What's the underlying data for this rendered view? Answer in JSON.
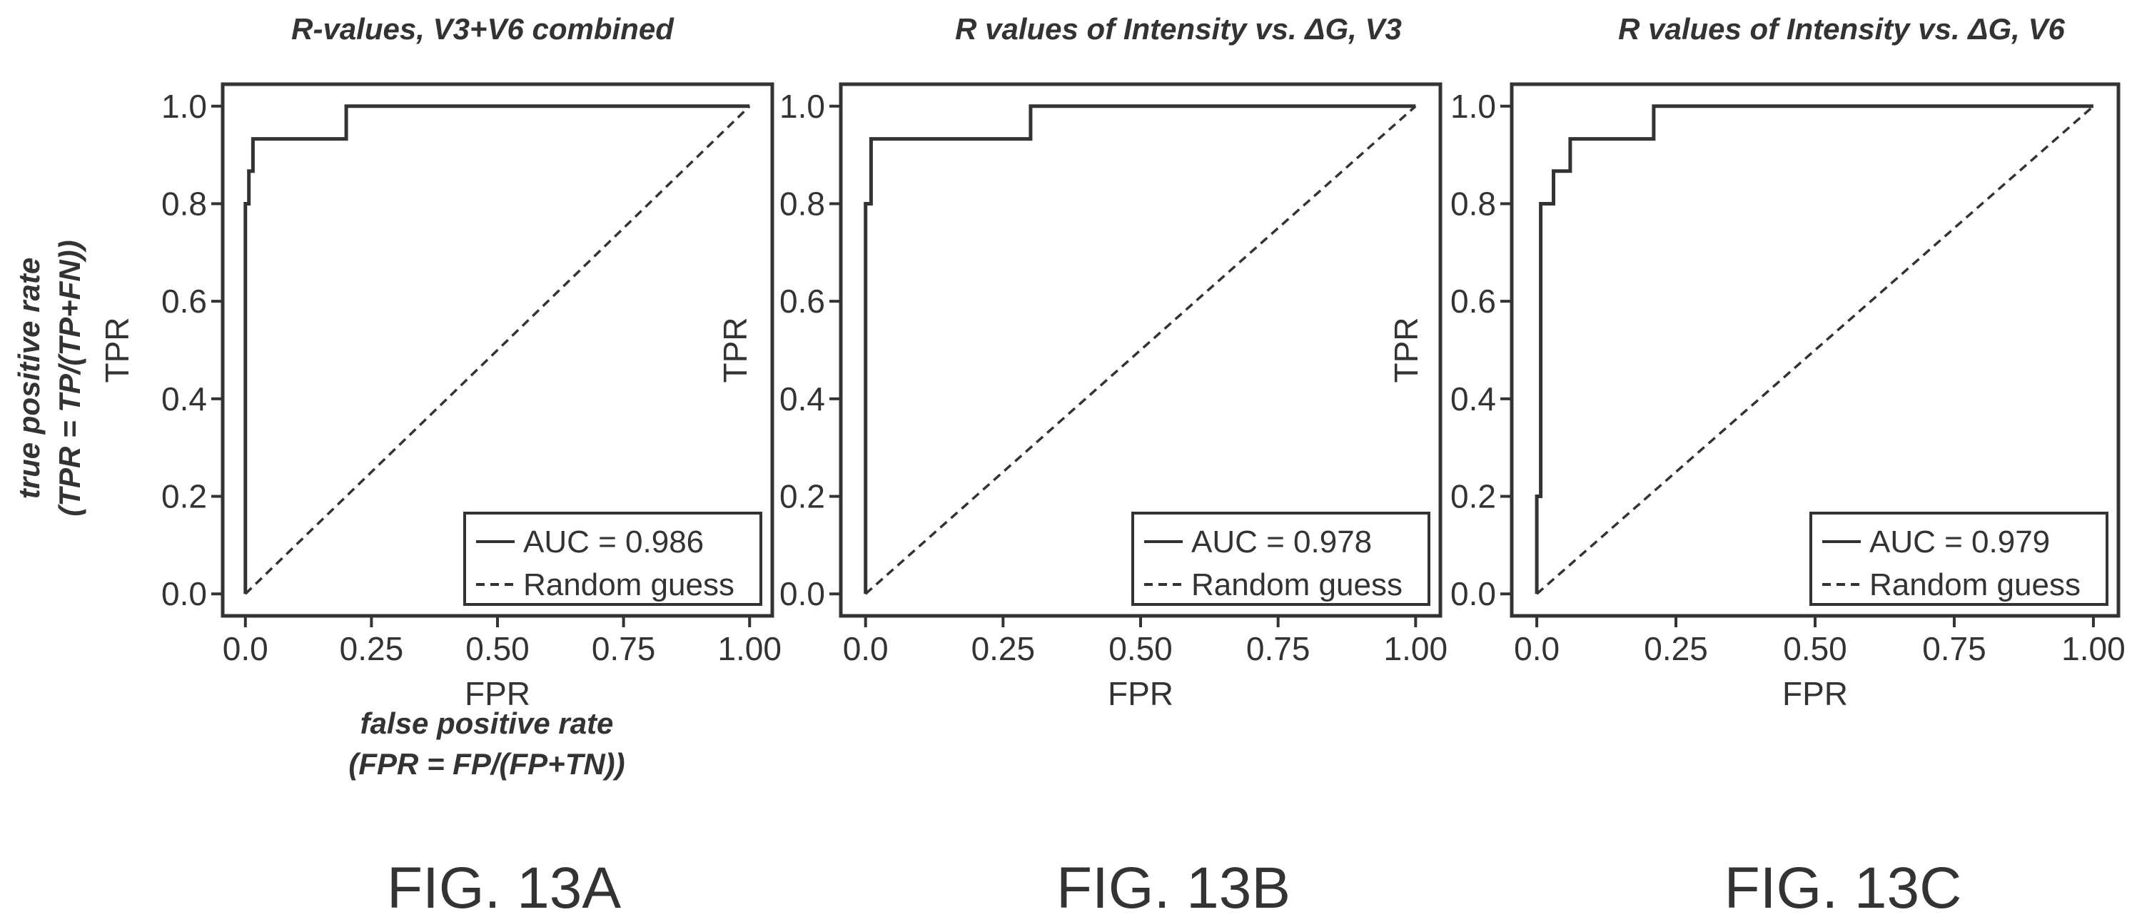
{
  "notes": {
    "y_line1": "true positive rate",
    "y_line2": "(TPR = TP/(TP+FN))",
    "x_line1": "false positive rate",
    "x_line2": "(FPR = FP/(FP+TN))"
  },
  "chart_data": [
    {
      "type": "line",
      "title": "R-values, V3+V6 combined",
      "figure_label": "FIG. 13A",
      "xlabel": "FPR",
      "ylabel": "TPR",
      "xlim": [
        0,
        1
      ],
      "ylim": [
        0,
        1
      ],
      "xticks": [
        "0.0",
        "0.25",
        "0.50",
        "0.75",
        "1.00"
      ],
      "yticks": [
        "0.0",
        "0.2",
        "0.4",
        "0.6",
        "0.8",
        "1.0"
      ],
      "grid": false,
      "legend_position": "bottom-right",
      "series": [
        {
          "name": "AUC = 0.986",
          "style": "solid",
          "x": [
            0,
            0,
            0.007,
            0.007,
            0.015,
            0.015,
            0.2,
            0.2,
            1
          ],
          "y": [
            0,
            0.8,
            0.8,
            0.867,
            0.867,
            0.933,
            0.933,
            1,
            1
          ]
        },
        {
          "name": "Random guess",
          "style": "dashed",
          "x": [
            0,
            1
          ],
          "y": [
            0,
            1
          ]
        }
      ]
    },
    {
      "type": "line",
      "title": "R values of Intensity vs. ΔG, V3",
      "figure_label": "FIG. 13B",
      "xlabel": "FPR",
      "ylabel": "TPR",
      "xlim": [
        0,
        1
      ],
      "ylim": [
        0,
        1
      ],
      "xticks": [
        "0.0",
        "0.25",
        "0.50",
        "0.75",
        "1.00"
      ],
      "yticks": [
        "0.0",
        "0.2",
        "0.4",
        "0.6",
        "0.8",
        "1.0"
      ],
      "grid": false,
      "legend_position": "bottom-right",
      "series": [
        {
          "name": "AUC = 0.978",
          "style": "solid",
          "x": [
            0,
            0,
            0.01,
            0.01,
            0.3,
            0.3,
            1
          ],
          "y": [
            0,
            0.8,
            0.8,
            0.933,
            0.933,
            1,
            1
          ]
        },
        {
          "name": "Random guess",
          "style": "dashed",
          "x": [
            0,
            1
          ],
          "y": [
            0,
            1
          ]
        }
      ]
    },
    {
      "type": "line",
      "title": "R values of Intensity vs. ΔG, V6",
      "figure_label": "FIG. 13C",
      "xlabel": "FPR",
      "ylabel": "TPR",
      "xlim": [
        0,
        1
      ],
      "ylim": [
        0,
        1
      ],
      "xticks": [
        "0.0",
        "0.25",
        "0.50",
        "0.75",
        "1.00"
      ],
      "yticks": [
        "0.0",
        "0.2",
        "0.4",
        "0.6",
        "0.8",
        "1.0"
      ],
      "grid": false,
      "legend_position": "bottom-right",
      "series": [
        {
          "name": "AUC = 0.979",
          "style": "solid",
          "x": [
            0,
            0,
            0.007,
            0.007,
            0.03,
            0.03,
            0.06,
            0.06,
            0.21,
            0.21,
            1
          ],
          "y": [
            0,
            0.2,
            0.2,
            0.8,
            0.8,
            0.867,
            0.867,
            0.933,
            0.933,
            1,
            1
          ]
        },
        {
          "name": "Random guess",
          "style": "dashed",
          "x": [
            0,
            1
          ],
          "y": [
            0,
            1
          ]
        }
      ]
    }
  ]
}
